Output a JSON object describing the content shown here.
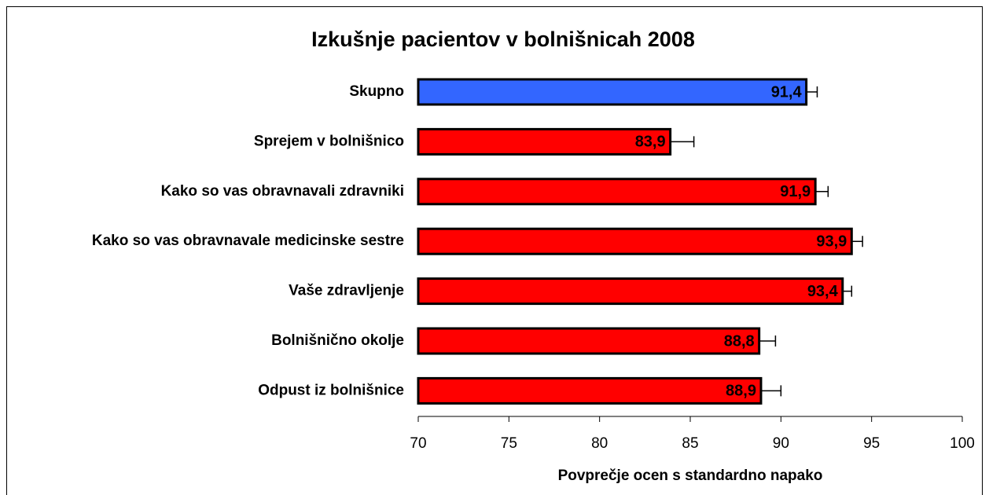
{
  "chart_data": {
    "type": "bar",
    "orientation": "horizontal",
    "title": "Izkušnje pacientov v bolnišnicah 2008",
    "x_label": "Povprečje ocen s standardno napako",
    "categories": [
      "Skupno",
      "Sprejem v bolnišnico",
      "Kako so vas obravnavali zdravniki",
      "Kako so vas obravnavale medicinske sestre",
      "Vaše zdravljenje",
      "Bolnišnično okolje",
      "Odpust iz bolnišnice"
    ],
    "values": [
      91.4,
      83.9,
      91.9,
      93.9,
      93.4,
      88.8,
      88.9
    ],
    "value_labels": [
      "91,4",
      "83,9",
      "91,9",
      "93,9",
      "93,4",
      "88,8",
      "88,9"
    ],
    "errors": [
      0.6,
      1.3,
      0.7,
      0.6,
      0.5,
      0.9,
      1.1
    ],
    "colors": [
      "#3366ff",
      "#ff0000",
      "#ff0000",
      "#ff0000",
      "#ff0000",
      "#ff0000",
      "#ff0000"
    ],
    "xlim": [
      70,
      100
    ],
    "xticks": [
      70,
      75,
      80,
      85,
      90,
      95,
      100
    ]
  }
}
